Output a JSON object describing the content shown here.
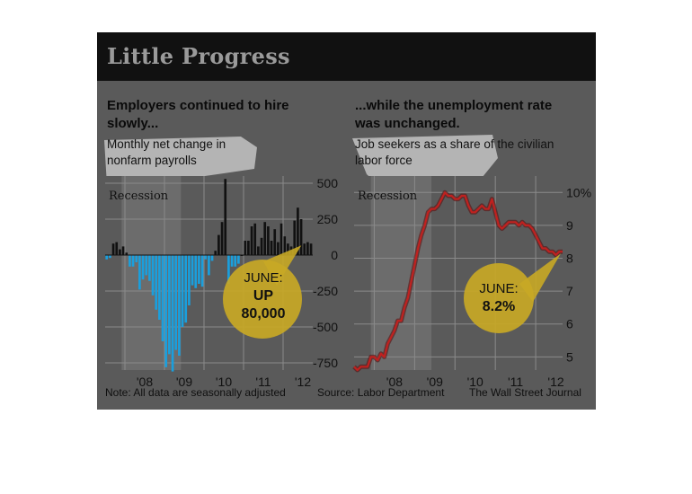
{
  "title": "Little Progress",
  "left_panel": {
    "heading": "Employers continued to hire slowly...",
    "description": "Monthly net change in nonfarm payrolls"
  },
  "right_panel": {
    "heading": "...while the unemployment rate was unchanged.",
    "description": "Job seekers as a share of the civilian labor force"
  },
  "footer": {
    "note": "Note: All data are seasonally adjusted",
    "source": "Source: Labor Department",
    "credit": "The Wall Street Journal"
  },
  "colors": {
    "negative_bar": "#1a9fdd",
    "positive_bar": "#111111",
    "line": "#c0211f",
    "callout": "#c8a825",
    "card_bg": "#5a5a5a",
    "recession_shade": "#6c6c6c"
  },
  "chart_data": [
    {
      "type": "bar",
      "title": "Employers continued to hire slowly...",
      "subtitle": "Monthly net change in nonfarm payrolls",
      "xlabel": "",
      "ylabel": "",
      "ylim": [
        -800,
        550
      ],
      "yticks": [
        500,
        250,
        0,
        -250,
        -500,
        -750
      ],
      "ytick_labels": [
        "500",
        "250",
        "0",
        "-250",
        "-500",
        "-750"
      ],
      "xtick_labels": [
        "'08",
        "'09",
        "'10",
        "'11",
        "'12"
      ],
      "grid": true,
      "recession": {
        "label": "Recession",
        "start": "2007-12",
        "end": "2009-06"
      },
      "annotation": {
        "lines": [
          "JUNE:",
          "UP",
          "80,000"
        ],
        "month": "2012-06"
      },
      "start_month": "2007-07",
      "values": [
        -30,
        -20,
        80,
        90,
        40,
        60,
        17,
        -80,
        -80,
        -50,
        -240,
        -170,
        -140,
        -180,
        -280,
        -380,
        -450,
        -600,
        -780,
        -690,
        -810,
        -660,
        -700,
        -500,
        -470,
        -350,
        -210,
        -230,
        -200,
        -220,
        -30,
        -140,
        -40,
        30,
        140,
        230,
        530,
        -200,
        -80,
        -80,
        -60,
        0,
        100,
        100,
        200,
        220,
        60,
        120,
        230,
        200,
        100,
        180,
        90,
        220,
        130,
        80,
        60,
        240,
        330,
        250,
        80,
        90,
        80
      ]
    },
    {
      "type": "line",
      "title": "...while the unemployment rate was unchanged.",
      "subtitle": "Job seekers as a share of the civilian labor force",
      "xlabel": "",
      "ylabel": "",
      "ylim": [
        4.6,
        10.5
      ],
      "yticks": [
        10,
        9,
        8,
        7,
        6,
        5
      ],
      "ytick_labels": [
        "10%",
        "9",
        "8",
        "7",
        "6",
        "5"
      ],
      "xtick_labels": [
        "'08",
        "'09",
        "'10",
        "'11",
        "'12"
      ],
      "grid": true,
      "recession": {
        "label": "Recession",
        "start": "2007-12",
        "end": "2009-06"
      },
      "annotation": {
        "lines": [
          "JUNE:",
          "8.2%"
        ],
        "month": "2012-06"
      },
      "series": [
        {
          "start_month": "2007-07",
          "values": [
            4.7,
            4.6,
            4.7,
            4.7,
            4.7,
            5.0,
            5.0,
            4.9,
            5.1,
            5.0,
            5.4,
            5.6,
            5.8,
            6.1,
            6.1,
            6.5,
            6.8,
            7.3,
            7.8,
            8.3,
            8.7,
            9.0,
            9.4,
            9.5,
            9.5,
            9.6,
            9.8,
            10.0,
            9.9,
            9.9,
            9.8,
            9.8,
            9.9,
            9.9,
            9.6,
            9.4,
            9.4,
            9.5,
            9.6,
            9.5,
            9.5,
            9.8,
            9.4,
            9.0,
            8.9,
            9.0,
            9.1,
            9.1,
            9.1,
            9.0,
            9.1,
            9.0,
            9.0,
            8.9,
            8.7,
            8.5,
            8.3,
            8.3,
            8.2,
            8.2,
            8.1,
            8.2,
            8.2
          ]
        }
      ]
    }
  ]
}
